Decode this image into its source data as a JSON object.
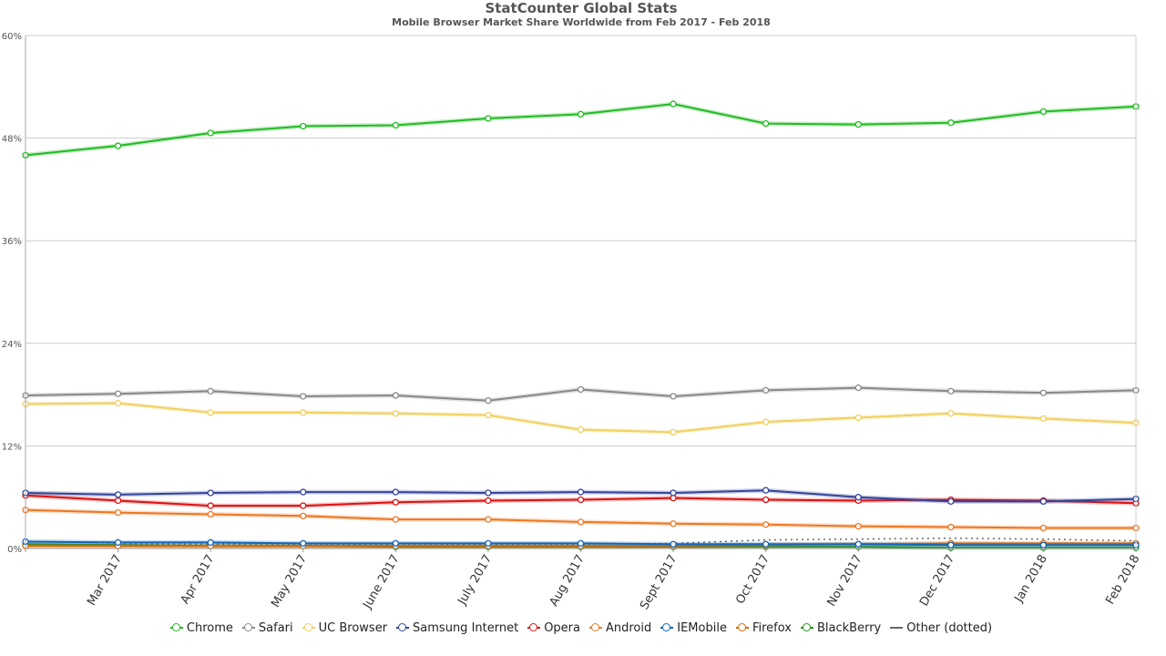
{
  "chart_data": {
    "type": "line",
    "title": "StatCounter Global Stats",
    "subtitle": "Mobile Browser Market Share Worldwide from Feb 2017 - Feb 2018",
    "ylim": [
      0,
      60
    ],
    "yticks": [
      "0%",
      "12%",
      "24%",
      "36%",
      "48%",
      "60%"
    ],
    "ytick_values": [
      0,
      12,
      24,
      36,
      48,
      60
    ],
    "categories": [
      "Feb 2017",
      "Mar 2017",
      "Apr 2017",
      "May 2017",
      "June 2017",
      "July 2017",
      "Aug 2017",
      "Sept 2017",
      "Oct 2017",
      "Nov 2017",
      "Dec 2017",
      "Jan 2018",
      "Feb 2018"
    ],
    "xtick_labels": [
      "",
      "Mar 2017",
      "Apr 2017",
      "May 2017",
      "June 2017",
      "July 2017",
      "Aug 2017",
      "Sept 2017",
      "Oct 2017",
      "Nov 2017",
      "Dec 2017",
      "Jan 2018",
      "Feb 2018"
    ],
    "grid": true,
    "legend_position": "bottom",
    "series": [
      {
        "name": "Chrome",
        "color": "#22bb22",
        "values": [
          46.0,
          47.1,
          48.6,
          49.4,
          49.5,
          50.3,
          50.8,
          52.0,
          49.7,
          49.6,
          49.8,
          51.1,
          51.7
        ]
      },
      {
        "name": "Safari",
        "color": "#888888",
        "values": [
          17.9,
          18.1,
          18.4,
          17.8,
          17.9,
          17.3,
          18.6,
          17.8,
          18.5,
          18.8,
          18.4,
          18.2,
          18.5
        ]
      },
      {
        "name": "UC Browser",
        "color": "#f0d060",
        "values": [
          16.9,
          17.0,
          15.9,
          15.9,
          15.8,
          15.6,
          13.9,
          13.6,
          14.8,
          15.3,
          15.8,
          15.2,
          14.7
        ]
      },
      {
        "name": "Samsung Internet",
        "color": "#334499",
        "values": [
          6.5,
          6.3,
          6.5,
          6.6,
          6.6,
          6.5,
          6.6,
          6.5,
          6.8,
          6.0,
          5.5,
          5.5,
          5.8
        ]
      },
      {
        "name": "Opera",
        "color": "#dd1111",
        "values": [
          6.2,
          5.6,
          5.0,
          5.0,
          5.4,
          5.6,
          5.7,
          5.9,
          5.7,
          5.6,
          5.7,
          5.6,
          5.3
        ]
      },
      {
        "name": "Android",
        "color": "#ee7722",
        "values": [
          4.5,
          4.2,
          4.0,
          3.8,
          3.4,
          3.4,
          3.1,
          2.9,
          2.8,
          2.6,
          2.5,
          2.4,
          2.4
        ]
      },
      {
        "name": "IEMobile",
        "color": "#1166bb",
        "values": [
          0.8,
          0.7,
          0.7,
          0.6,
          0.6,
          0.6,
          0.6,
          0.5,
          0.5,
          0.5,
          0.4,
          0.4,
          0.4
        ]
      },
      {
        "name": "Firefox",
        "color": "#dd6600",
        "values": [
          0.3,
          0.3,
          0.3,
          0.3,
          0.3,
          0.3,
          0.3,
          0.3,
          0.4,
          0.5,
          0.6,
          0.6,
          0.6
        ]
      },
      {
        "name": "BlackBerry",
        "color": "#229922",
        "values": [
          0.5,
          0.4,
          0.3,
          0.3,
          0.2,
          0.2,
          0.2,
          0.2,
          0.2,
          0.2,
          0.1,
          0.1,
          0.1
        ]
      },
      {
        "name": "Other (dotted)",
        "color": "#666666",
        "dotted": true,
        "values": [
          0.4,
          0.5,
          0.5,
          0.5,
          0.5,
          0.5,
          0.5,
          0.6,
          1.0,
          1.1,
          1.2,
          1.1,
          0.9
        ]
      }
    ]
  }
}
